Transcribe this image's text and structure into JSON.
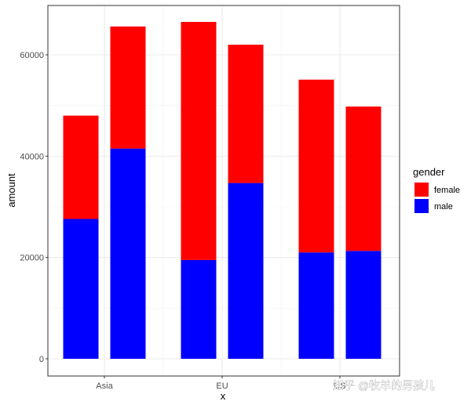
{
  "chart_data": {
    "type": "bar",
    "stacked": true,
    "categories": [
      "Asia",
      "EU",
      "US"
    ],
    "bars_per_category": 2,
    "series": [
      {
        "name": "male",
        "color": "#0000ff",
        "values": [
          [
            27600,
            41500
          ],
          [
            19500,
            34700
          ],
          [
            21000,
            21300
          ]
        ]
      },
      {
        "name": "female",
        "color": "#ff0000",
        "values": [
          [
            20400,
            24100
          ],
          [
            47000,
            27300
          ],
          [
            34100,
            28500
          ]
        ]
      }
    ],
    "totals": [
      [
        48000,
        65600
      ],
      [
        66500,
        62000
      ],
      [
        55100,
        49800
      ]
    ],
    "xlabel": "x",
    "ylabel": "amount",
    "ylim": [
      0,
      70000
    ],
    "yticks": [
      0,
      20000,
      40000,
      60000
    ],
    "grid": true,
    "legend": {
      "title": "gender",
      "position": "right",
      "entries": [
        "female",
        "male"
      ]
    }
  },
  "watermark": "知乎 @牧羊的男孩儿"
}
